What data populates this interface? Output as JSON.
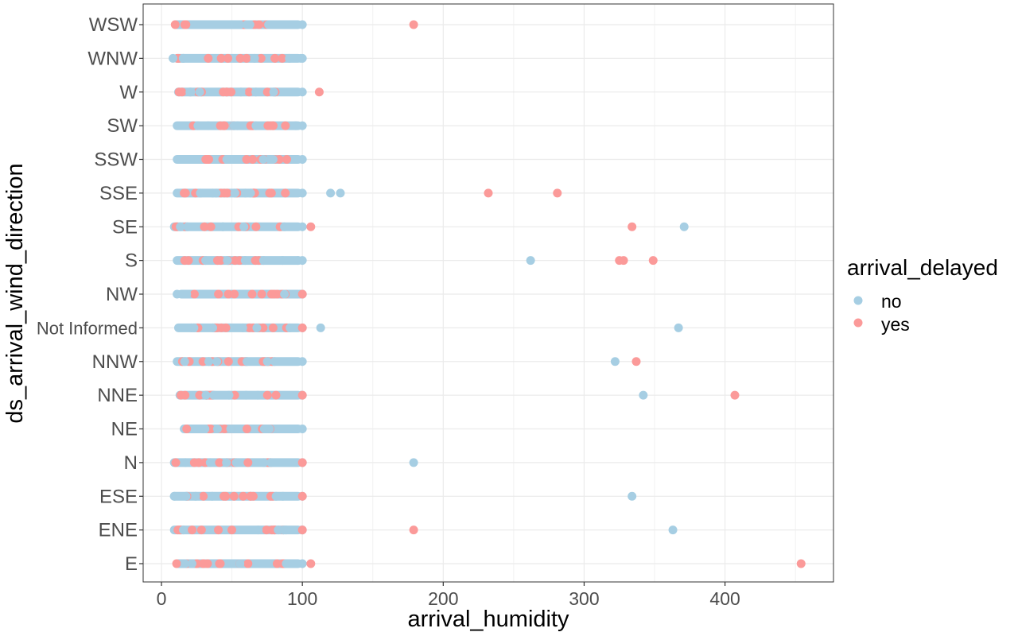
{
  "chart_data": {
    "type": "scatter",
    "xlabel": "arrival_humidity",
    "ylabel": "ds_arrival_wind_direction",
    "xlim": [
      -13,
      477
    ],
    "x_ticks": [
      0,
      100,
      200,
      300,
      400
    ],
    "categories": [
      "E",
      "ENE",
      "ESE",
      "N",
      "NE",
      "NNE",
      "NNW",
      "Not Informed",
      "NW",
      "S",
      "SE",
      "SSE",
      "SSW",
      "SW",
      "W",
      "WNW",
      "WSW"
    ],
    "grid": true,
    "legend": {
      "title": "arrival_delayed",
      "position": "right",
      "entries": [
        {
          "label": "no",
          "color": "#a6cee3"
        },
        {
          "label": "yes",
          "color": "#fb9a99"
        }
      ]
    },
    "ranges": {
      "E": [
        9,
        100
      ],
      "ENE": [
        6,
        100
      ],
      "ESE": [
        6,
        100
      ],
      "N": [
        6,
        100
      ],
      "NE": [
        13,
        100
      ],
      "NNE": [
        10,
        100
      ],
      "NNW": [
        8,
        100
      ],
      "Not Informed": [
        9,
        100
      ],
      "NW": [
        11,
        100
      ],
      "S": [
        8,
        100
      ],
      "SE": [
        6,
        100
      ],
      "SSE": [
        8,
        100
      ],
      "SSW": [
        8,
        100
      ],
      "SW": [
        8,
        100
      ],
      "W": [
        9,
        100
      ],
      "WNW": [
        8,
        100
      ],
      "WSW": [
        7,
        100
      ]
    },
    "series": [
      {
        "name": "no",
        "color": "#a6cee3",
        "points": [
          {
            "x": 100,
            "y": "E"
          },
          {
            "x": 100,
            "y": "ENE"
          },
          {
            "x": 363,
            "y": "ENE"
          },
          {
            "x": 100,
            "y": "ESE"
          },
          {
            "x": 334,
            "y": "ESE"
          },
          {
            "x": 100,
            "y": "N"
          },
          {
            "x": 179,
            "y": "N"
          },
          {
            "x": 100,
            "y": "NE"
          },
          {
            "x": 100,
            "y": "NNE"
          },
          {
            "x": 342,
            "y": "NNE"
          },
          {
            "x": 100,
            "y": "NNW"
          },
          {
            "x": 322,
            "y": "NNW"
          },
          {
            "x": 100,
            "y": "Not Informed"
          },
          {
            "x": 113,
            "y": "Not Informed"
          },
          {
            "x": 367,
            "y": "Not Informed"
          },
          {
            "x": 100,
            "y": "NW"
          },
          {
            "x": 100,
            "y": "S"
          },
          {
            "x": 262,
            "y": "S"
          },
          {
            "x": 100,
            "y": "SE"
          },
          {
            "x": 371,
            "y": "SE"
          },
          {
            "x": 100,
            "y": "SSE"
          },
          {
            "x": 120,
            "y": "SSE"
          },
          {
            "x": 127,
            "y": "SSE"
          },
          {
            "x": 100,
            "y": "SSW"
          },
          {
            "x": 100,
            "y": "SW"
          },
          {
            "x": 100,
            "y": "W"
          },
          {
            "x": 100,
            "y": "WNW"
          },
          {
            "x": 100,
            "y": "WSW"
          }
        ]
      },
      {
        "name": "yes",
        "color": "#fb9a99",
        "points": [
          {
            "x": 106,
            "y": "E"
          },
          {
            "x": 454,
            "y": "E"
          },
          {
            "x": 179,
            "y": "ENE"
          },
          {
            "x": 232,
            "y": "SSE"
          },
          {
            "x": 281,
            "y": "SSE"
          },
          {
            "x": 106,
            "y": "SE"
          },
          {
            "x": 334,
            "y": "SE"
          },
          {
            "x": 325,
            "y": "S"
          },
          {
            "x": 328,
            "y": "S"
          },
          {
            "x": 349,
            "y": "S"
          },
          {
            "x": 337,
            "y": "NNW"
          },
          {
            "x": 407,
            "y": "NNE"
          },
          {
            "x": 112,
            "y": "W"
          },
          {
            "x": 179,
            "y": "WSW"
          },
          {
            "x": 100,
            "y": "ESE"
          },
          {
            "x": 100,
            "y": "N"
          },
          {
            "x": 100,
            "y": "NNE"
          },
          {
            "x": 100,
            "y": "NW"
          },
          {
            "x": 100,
            "y": "Not Informed"
          },
          {
            "x": 100,
            "y": "ENE"
          }
        ]
      }
    ]
  }
}
